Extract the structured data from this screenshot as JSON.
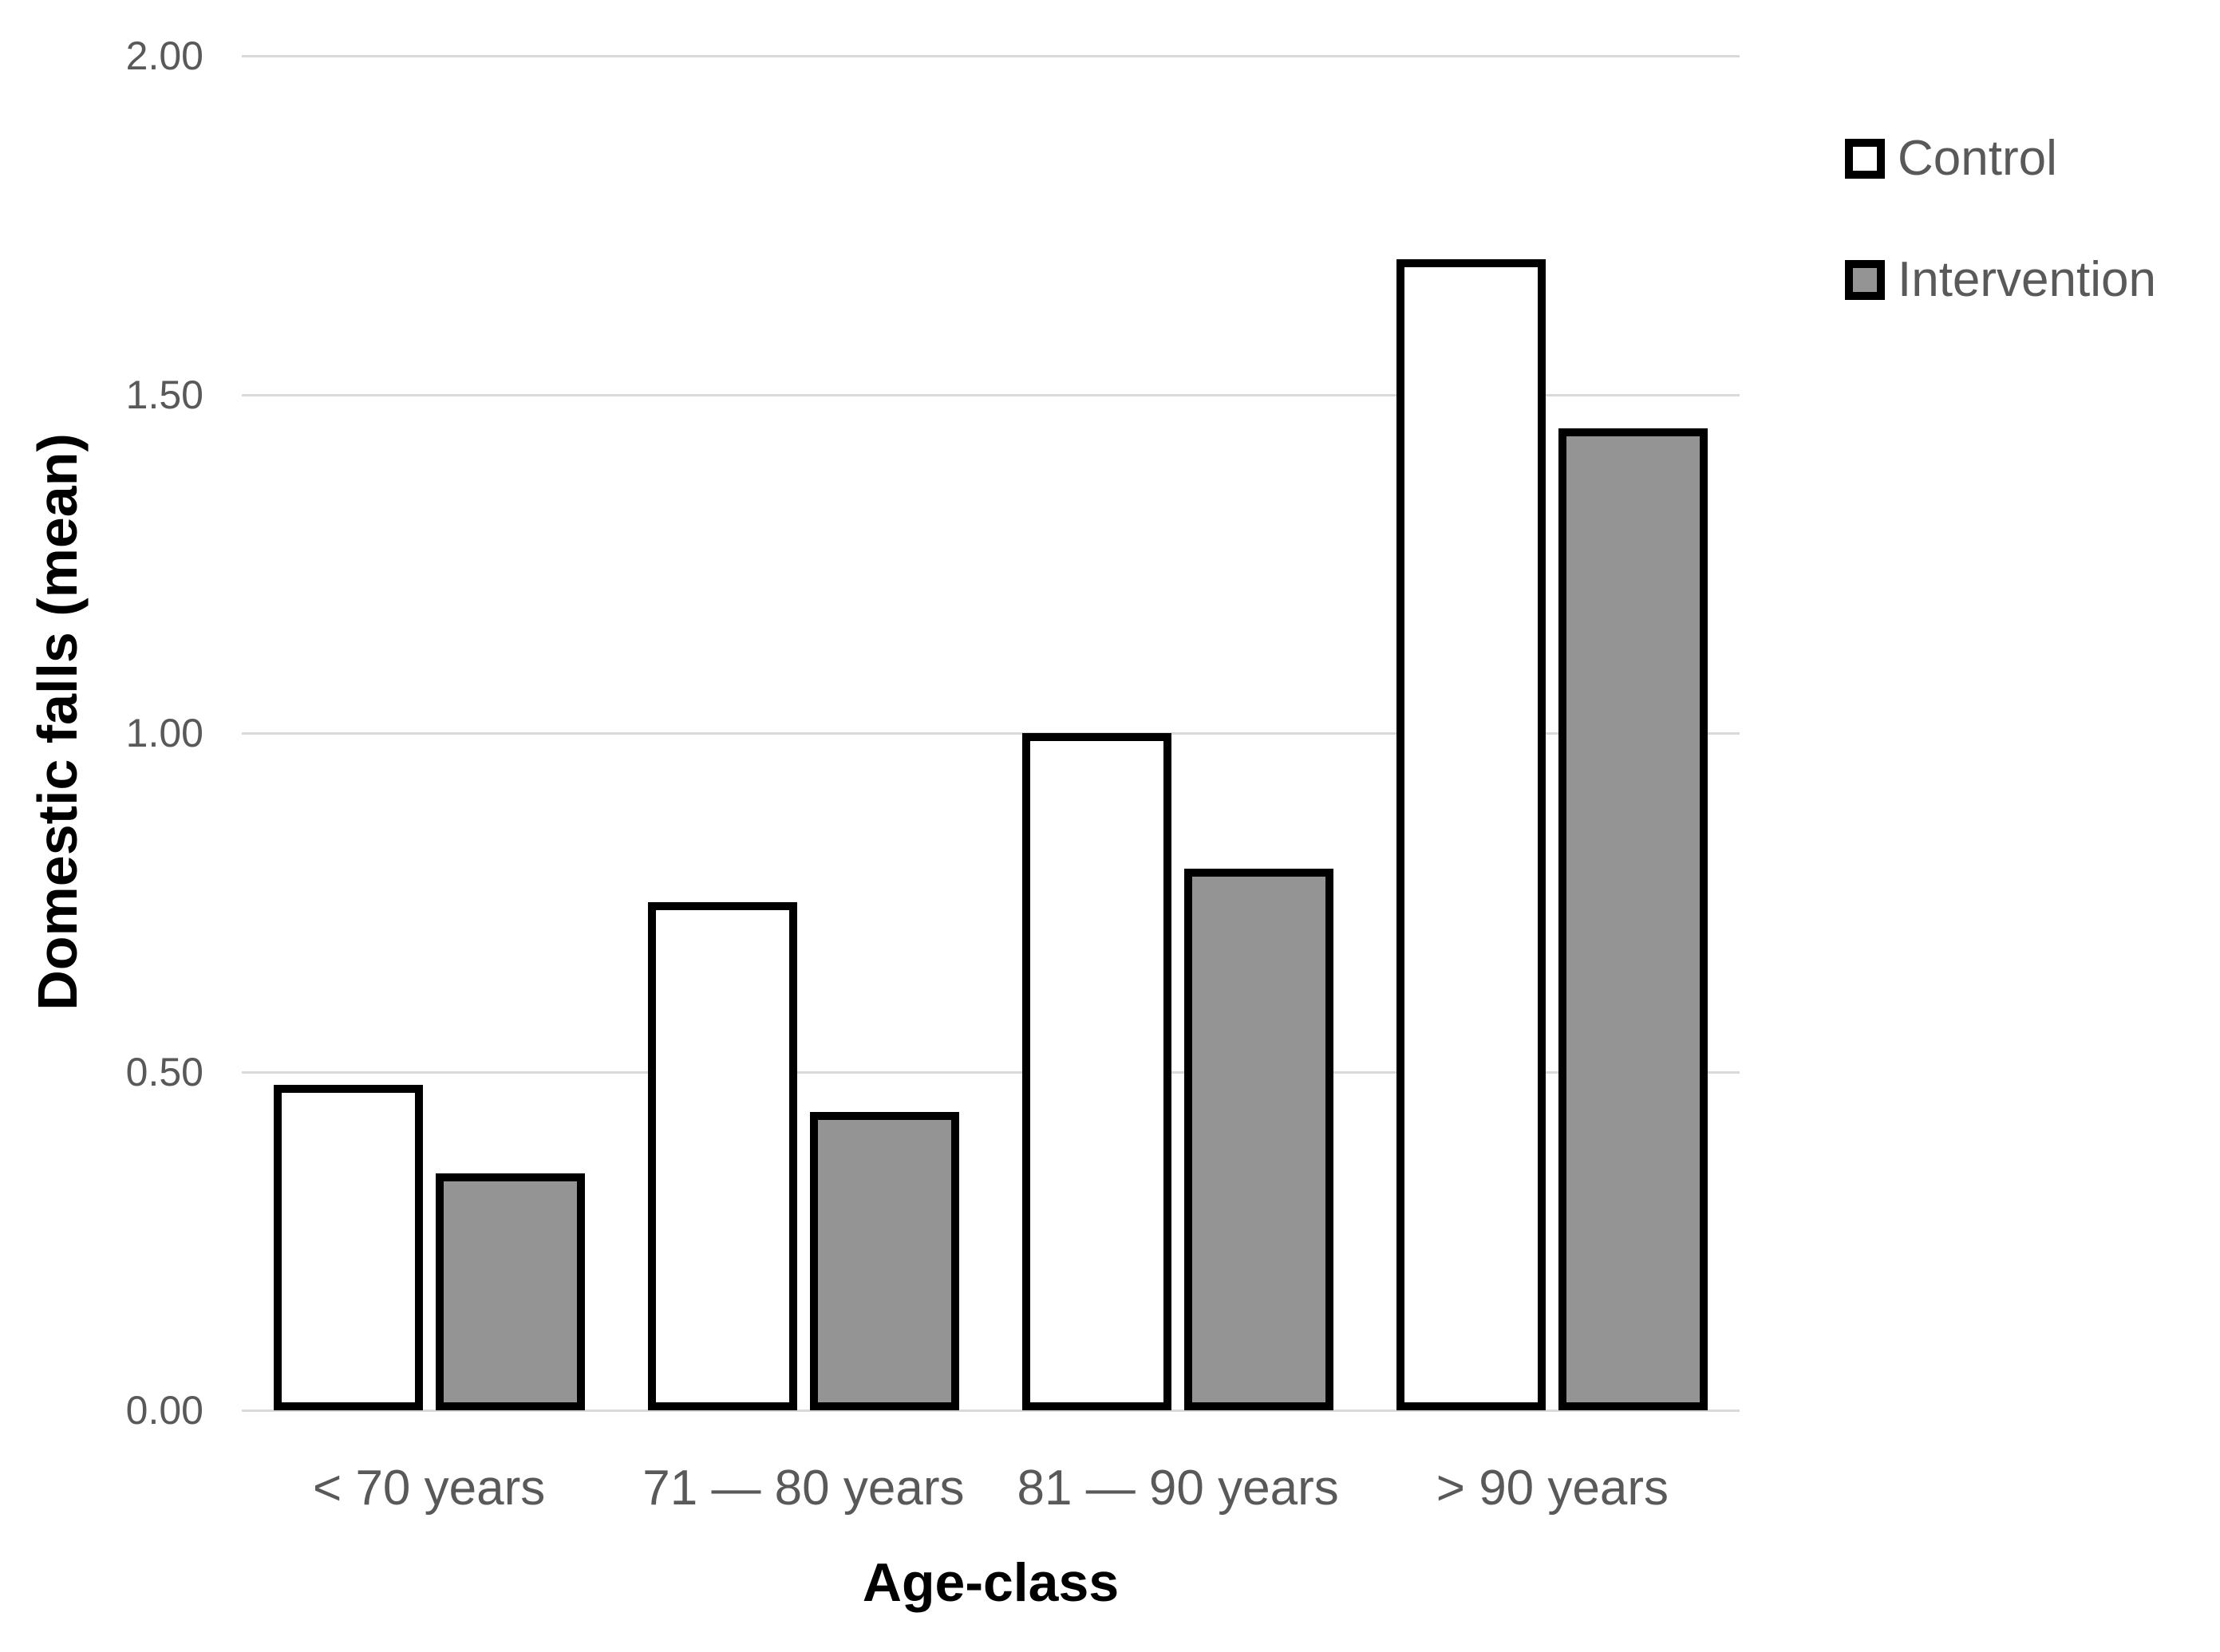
{
  "chart_data": {
    "type": "bar",
    "title": "",
    "categories": [
      "< 70 years",
      "71 — 80 years",
      "81 — 90 years",
      "> 90 years"
    ],
    "series": [
      {
        "name": "Control",
        "fill": "#ffffff",
        "border": "#000000",
        "values": [
          0.48,
          0.75,
          1.0,
          1.7
        ]
      },
      {
        "name": "Intervention",
        "fill": "#949494",
        "border": "#000000",
        "values": [
          0.35,
          0.44,
          0.8,
          1.45
        ]
      }
    ],
    "xlabel": "Age-class",
    "ylabel": "Domestic falls (mean)",
    "ylim": [
      0,
      2
    ],
    "ytick_step": 0.5,
    "yticks": [
      "0.00",
      "0.50",
      "1.00",
      "1.50",
      "2.00"
    ],
    "grid": true,
    "legend_position": "top-right",
    "colors": {
      "gridline": "#d9d9d9",
      "tick_label": "#595959",
      "category_label": "#595959",
      "legend_text": "#595959",
      "axis_title": "#000000",
      "background": "#ffffff"
    }
  }
}
